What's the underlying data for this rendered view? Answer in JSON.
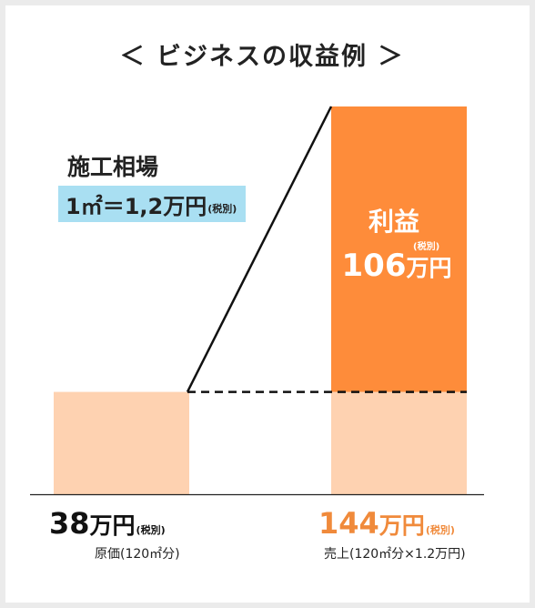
{
  "title": "＜ ビジネスの収益例 ＞",
  "fee": {
    "title": "施工相場",
    "rate_text": "1㎡＝1,2万円",
    "tax_note": "(税別)"
  },
  "profit": {
    "label": "利益",
    "value": "106",
    "unit": "万円",
    "tax_note": "(税別)"
  },
  "cost": {
    "value": "38",
    "unit": "万円",
    "tax_note": "(税別)",
    "sub": "原価(120㎡分)"
  },
  "sales": {
    "value": "144",
    "unit": "万円",
    "tax_note": "(税別)",
    "sub": "売上(120㎡分×1.2万円)"
  },
  "colors": {
    "cost_bar": "#fed2b1",
    "profit_bar": "#fe8c3a",
    "fee_box": "#a9dff2",
    "sales_text": "#f08a3b"
  },
  "chart_data": {
    "type": "bar",
    "categories": [
      "原価(120㎡分)",
      "売上(120㎡分×1.2万円)"
    ],
    "series": [
      {
        "name": "原価",
        "values": [
          38,
          38
        ]
      },
      {
        "name": "利益",
        "values": [
          0,
          106
        ]
      }
    ],
    "totals": [
      38,
      144
    ],
    "ylim": [
      0,
      144
    ],
    "stacked": true,
    "grid": false,
    "legend": "none"
  }
}
